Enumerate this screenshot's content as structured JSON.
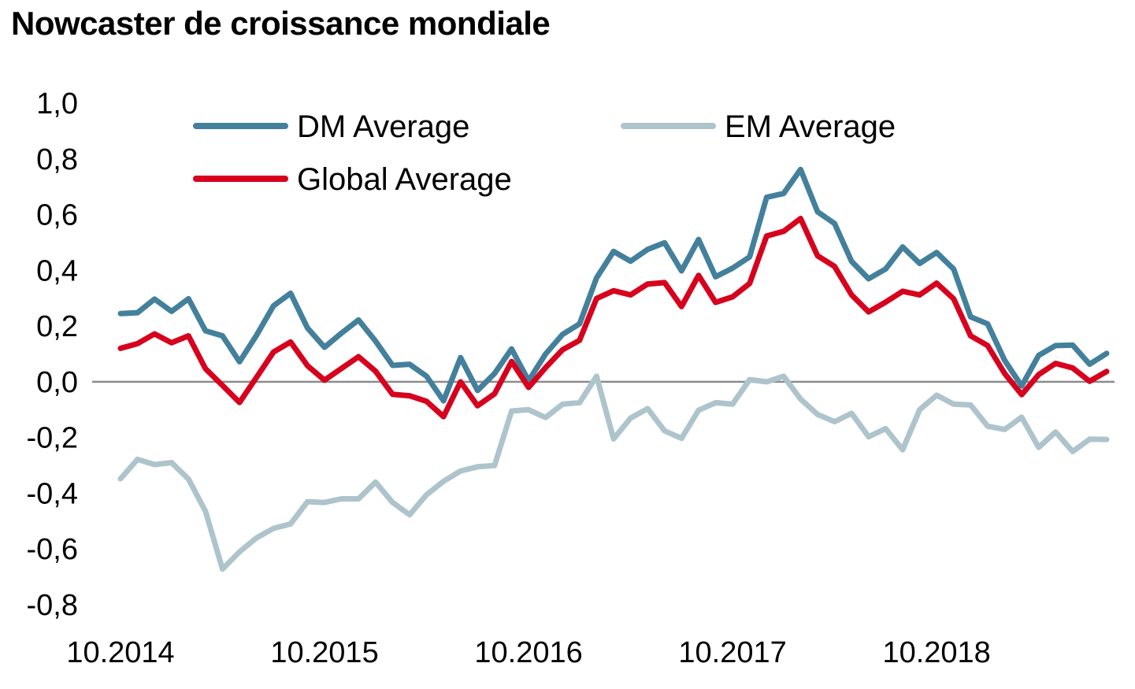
{
  "chart_data": {
    "type": "line",
    "title": "Nowcaster de croissance mondiale",
    "xlabel": "",
    "ylabel": "",
    "ylim": [
      -0.8,
      1.0
    ],
    "yticks": [
      1.0,
      0.8,
      0.6,
      0.4,
      0.2,
      0.0,
      -0.2,
      -0.4,
      -0.6,
      -0.8
    ],
    "ytick_labels": [
      "1,0",
      "0,8",
      "0,6",
      "0,4",
      "0,2",
      "0,0",
      "-0,2",
      "-0,4",
      "-0,6",
      "-0,8"
    ],
    "x_start": "10.2014",
    "x_interval": "month",
    "xtick_labels": [
      {
        "index": 0,
        "label": "10.2014"
      },
      {
        "index": 12,
        "label": "10.2015"
      },
      {
        "index": 24,
        "label": "10.2016"
      },
      {
        "index": 36,
        "label": "10.2017"
      },
      {
        "index": 48,
        "label": "10.2018"
      }
    ],
    "zero_line": true,
    "grid": false,
    "legend_position": "top",
    "series": [
      {
        "name": "DM Average",
        "color": "#43809c",
        "values": [
          0.245,
          0.248,
          0.297,
          0.253,
          0.298,
          0.183,
          0.165,
          0.072,
          0.167,
          0.273,
          0.318,
          0.193,
          0.124,
          0.175,
          0.222,
          0.146,
          0.059,
          0.063,
          0.02,
          -0.068,
          0.087,
          -0.031,
          0.03,
          0.118,
          0.004,
          0.1,
          0.17,
          0.208,
          0.373,
          0.468,
          0.433,
          0.475,
          0.499,
          0.398,
          0.511,
          0.377,
          0.408,
          0.448,
          0.662,
          0.676,
          0.762,
          0.61,
          0.568,
          0.432,
          0.37,
          0.405,
          0.484,
          0.425,
          0.464,
          0.405,
          0.233,
          0.208,
          0.077,
          -0.015,
          0.095,
          0.13,
          0.132,
          0.063,
          0.102
        ]
      },
      {
        "name": "EM Average",
        "color": "#aec4cc",
        "values": [
          -0.348,
          -0.278,
          -0.297,
          -0.29,
          -0.349,
          -0.465,
          -0.672,
          -0.61,
          -0.56,
          -0.526,
          -0.51,
          -0.43,
          -0.433,
          -0.42,
          -0.42,
          -0.36,
          -0.433,
          -0.477,
          -0.405,
          -0.357,
          -0.32,
          -0.305,
          -0.3,
          -0.105,
          -0.1,
          -0.128,
          -0.08,
          -0.075,
          0.02,
          -0.205,
          -0.13,
          -0.096,
          -0.176,
          -0.203,
          -0.102,
          -0.075,
          -0.08,
          0.008,
          0.0,
          0.02,
          -0.062,
          -0.117,
          -0.143,
          -0.113,
          -0.197,
          -0.168,
          -0.244,
          -0.1,
          -0.048,
          -0.08,
          -0.083,
          -0.159,
          -0.171,
          -0.127,
          -0.235,
          -0.18,
          -0.25,
          -0.206,
          -0.207
        ]
      },
      {
        "name": "Global Average",
        "color": "#d7001d",
        "values": [
          0.12,
          0.137,
          0.172,
          0.14,
          0.165,
          0.047,
          -0.013,
          -0.074,
          0.016,
          0.107,
          0.143,
          0.058,
          0.006,
          0.048,
          0.09,
          0.038,
          -0.045,
          -0.05,
          -0.07,
          -0.125,
          0.0,
          -0.086,
          -0.043,
          0.073,
          -0.02,
          0.051,
          0.115,
          0.149,
          0.299,
          0.327,
          0.312,
          0.351,
          0.356,
          0.27,
          0.382,
          0.285,
          0.305,
          0.353,
          0.523,
          0.54,
          0.586,
          0.452,
          0.414,
          0.312,
          0.251,
          0.286,
          0.325,
          0.312,
          0.354,
          0.298,
          0.165,
          0.13,
          0.03,
          -0.046,
          0.026,
          0.066,
          0.05,
          0.002,
          0.037
        ]
      }
    ]
  }
}
